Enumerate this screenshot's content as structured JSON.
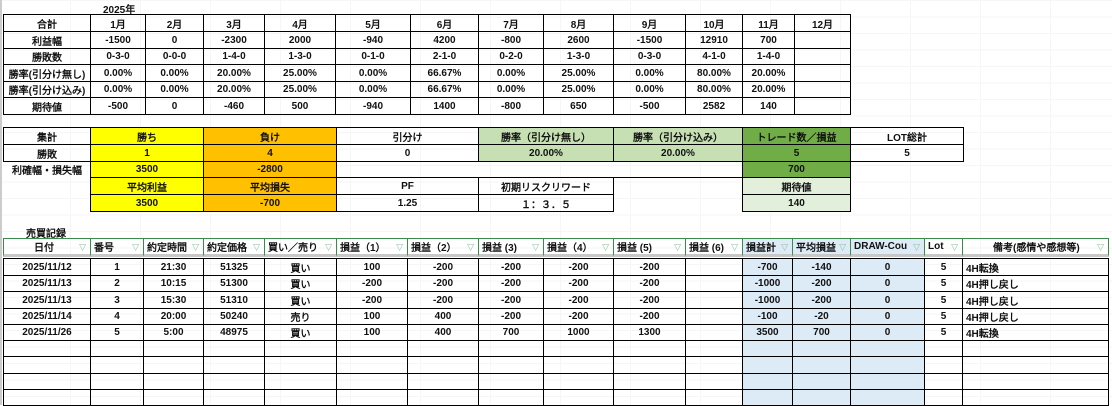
{
  "monthly": {
    "year_label": "2025年",
    "header": [
      "合計",
      "1月",
      "2月",
      "3月",
      "4月",
      "5月",
      "6月",
      "7月",
      "8月",
      "9月",
      "10月",
      "11月",
      "12月"
    ],
    "rows": [
      [
        "利益幅",
        "-1500",
        "0",
        "-2300",
        "2000",
        "-940",
        "4200",
        "-800",
        "2600",
        "-1500",
        "12910",
        "700",
        ""
      ],
      [
        "勝敗数",
        "0-3-0",
        "0-0-0",
        "1-4-0",
        "1-3-0",
        "0-1-0",
        "2-1-0",
        "0-2-0",
        "1-3-0",
        "0-3-0",
        "4-1-0",
        "1-4-0",
        ""
      ],
      [
        "勝率(引分け無し)",
        "0.00%",
        "0.00%",
        "20.00%",
        "25.00%",
        "0.00%",
        "66.67%",
        "0.00%",
        "25.00%",
        "0.00%",
        "80.00%",
        "20.00%",
        ""
      ],
      [
        "勝率(引分け込み)",
        "0.00%",
        "0.00%",
        "20.00%",
        "25.00%",
        "0.00%",
        "66.67%",
        "0.00%",
        "25.00%",
        "0.00%",
        "80.00%",
        "20.00%",
        ""
      ],
      [
        "期待値",
        "-500",
        "0",
        "-460",
        "500",
        "-940",
        "1400",
        "-800",
        "650",
        "-500",
        "2582",
        "140",
        ""
      ]
    ]
  },
  "summary": {
    "header": [
      "集計",
      "勝ち",
      "負け",
      "引分け",
      "勝率（引分け無し）",
      "勝率（引分け込み）",
      "トレード数／損益",
      "LOT総計"
    ],
    "record_label": "勝敗",
    "wins": "1",
    "losses": "4",
    "draws": "0",
    "winrate_no_draw": "20.00%",
    "winrate_with_draw": "20.00%",
    "trade_count": "5",
    "lot_total": "5",
    "range_label": "利確幅・損失幅",
    "profit_range": "3500",
    "loss_range": "-2800",
    "total_pl": "700",
    "avg_profit_label": "平均利益",
    "avg_loss_label": "平均損失",
    "pf_label": "PF",
    "risk_reward_label": "初期リスクリワード",
    "expectancy_label": "期待値",
    "avg_profit": "3500",
    "avg_loss": "-700",
    "pf": "1.25",
    "risk_reward": "１：３．５",
    "expectancy": "140"
  },
  "trades": {
    "title": "売買記録",
    "columns": [
      "日付",
      "番号",
      "約定時間",
      "約定価格",
      "買い／売り",
      "損益（1）",
      "損益（2）",
      "損益 (3)",
      "損益（4）",
      "損益 (5)",
      "損益 (6)",
      "損益計",
      "平均損益",
      "DRAW-Cou",
      "Lot",
      "備考(感情や感想等)"
    ],
    "rows": [
      [
        "2025/11/12",
        "1",
        "21:30",
        "51325",
        "買い",
        "100",
        "-200",
        "-200",
        "-200",
        "-200",
        "",
        "-700",
        "-140",
        "0",
        "5",
        "4H転換"
      ],
      [
        "2025/11/13",
        "2",
        "10:15",
        "51300",
        "買い",
        "-200",
        "-200",
        "-200",
        "-200",
        "-200",
        "",
        "-1000",
        "-200",
        "0",
        "5",
        "4H押し戻し"
      ],
      [
        "2025/11/13",
        "3",
        "15:30",
        "51310",
        "買い",
        "-200",
        "-200",
        "-200",
        "-200",
        "-200",
        "",
        "-1000",
        "-200",
        "0",
        "5",
        "4H押し戻し"
      ],
      [
        "2025/11/14",
        "4",
        "20:00",
        "50240",
        "売り",
        "100",
        "400",
        "-200",
        "-200",
        "-200",
        "",
        "-100",
        "-20",
        "0",
        "5",
        "4H押し戻し"
      ],
      [
        "2025/11/26",
        "5",
        "5:00",
        "48975",
        "買い",
        "100",
        "400",
        "700",
        "1000",
        "1300",
        "",
        "3500",
        "700",
        "0",
        "5",
        "4H転換"
      ]
    ]
  },
  "colors": {
    "win": "#ffff00",
    "loss": "#ffc000",
    "rate": "#c6e0b4",
    "trade": "#70ad47",
    "expect": "#e2efda",
    "calc": "#ddebf7",
    "header_border": "#3a8a4a"
  }
}
